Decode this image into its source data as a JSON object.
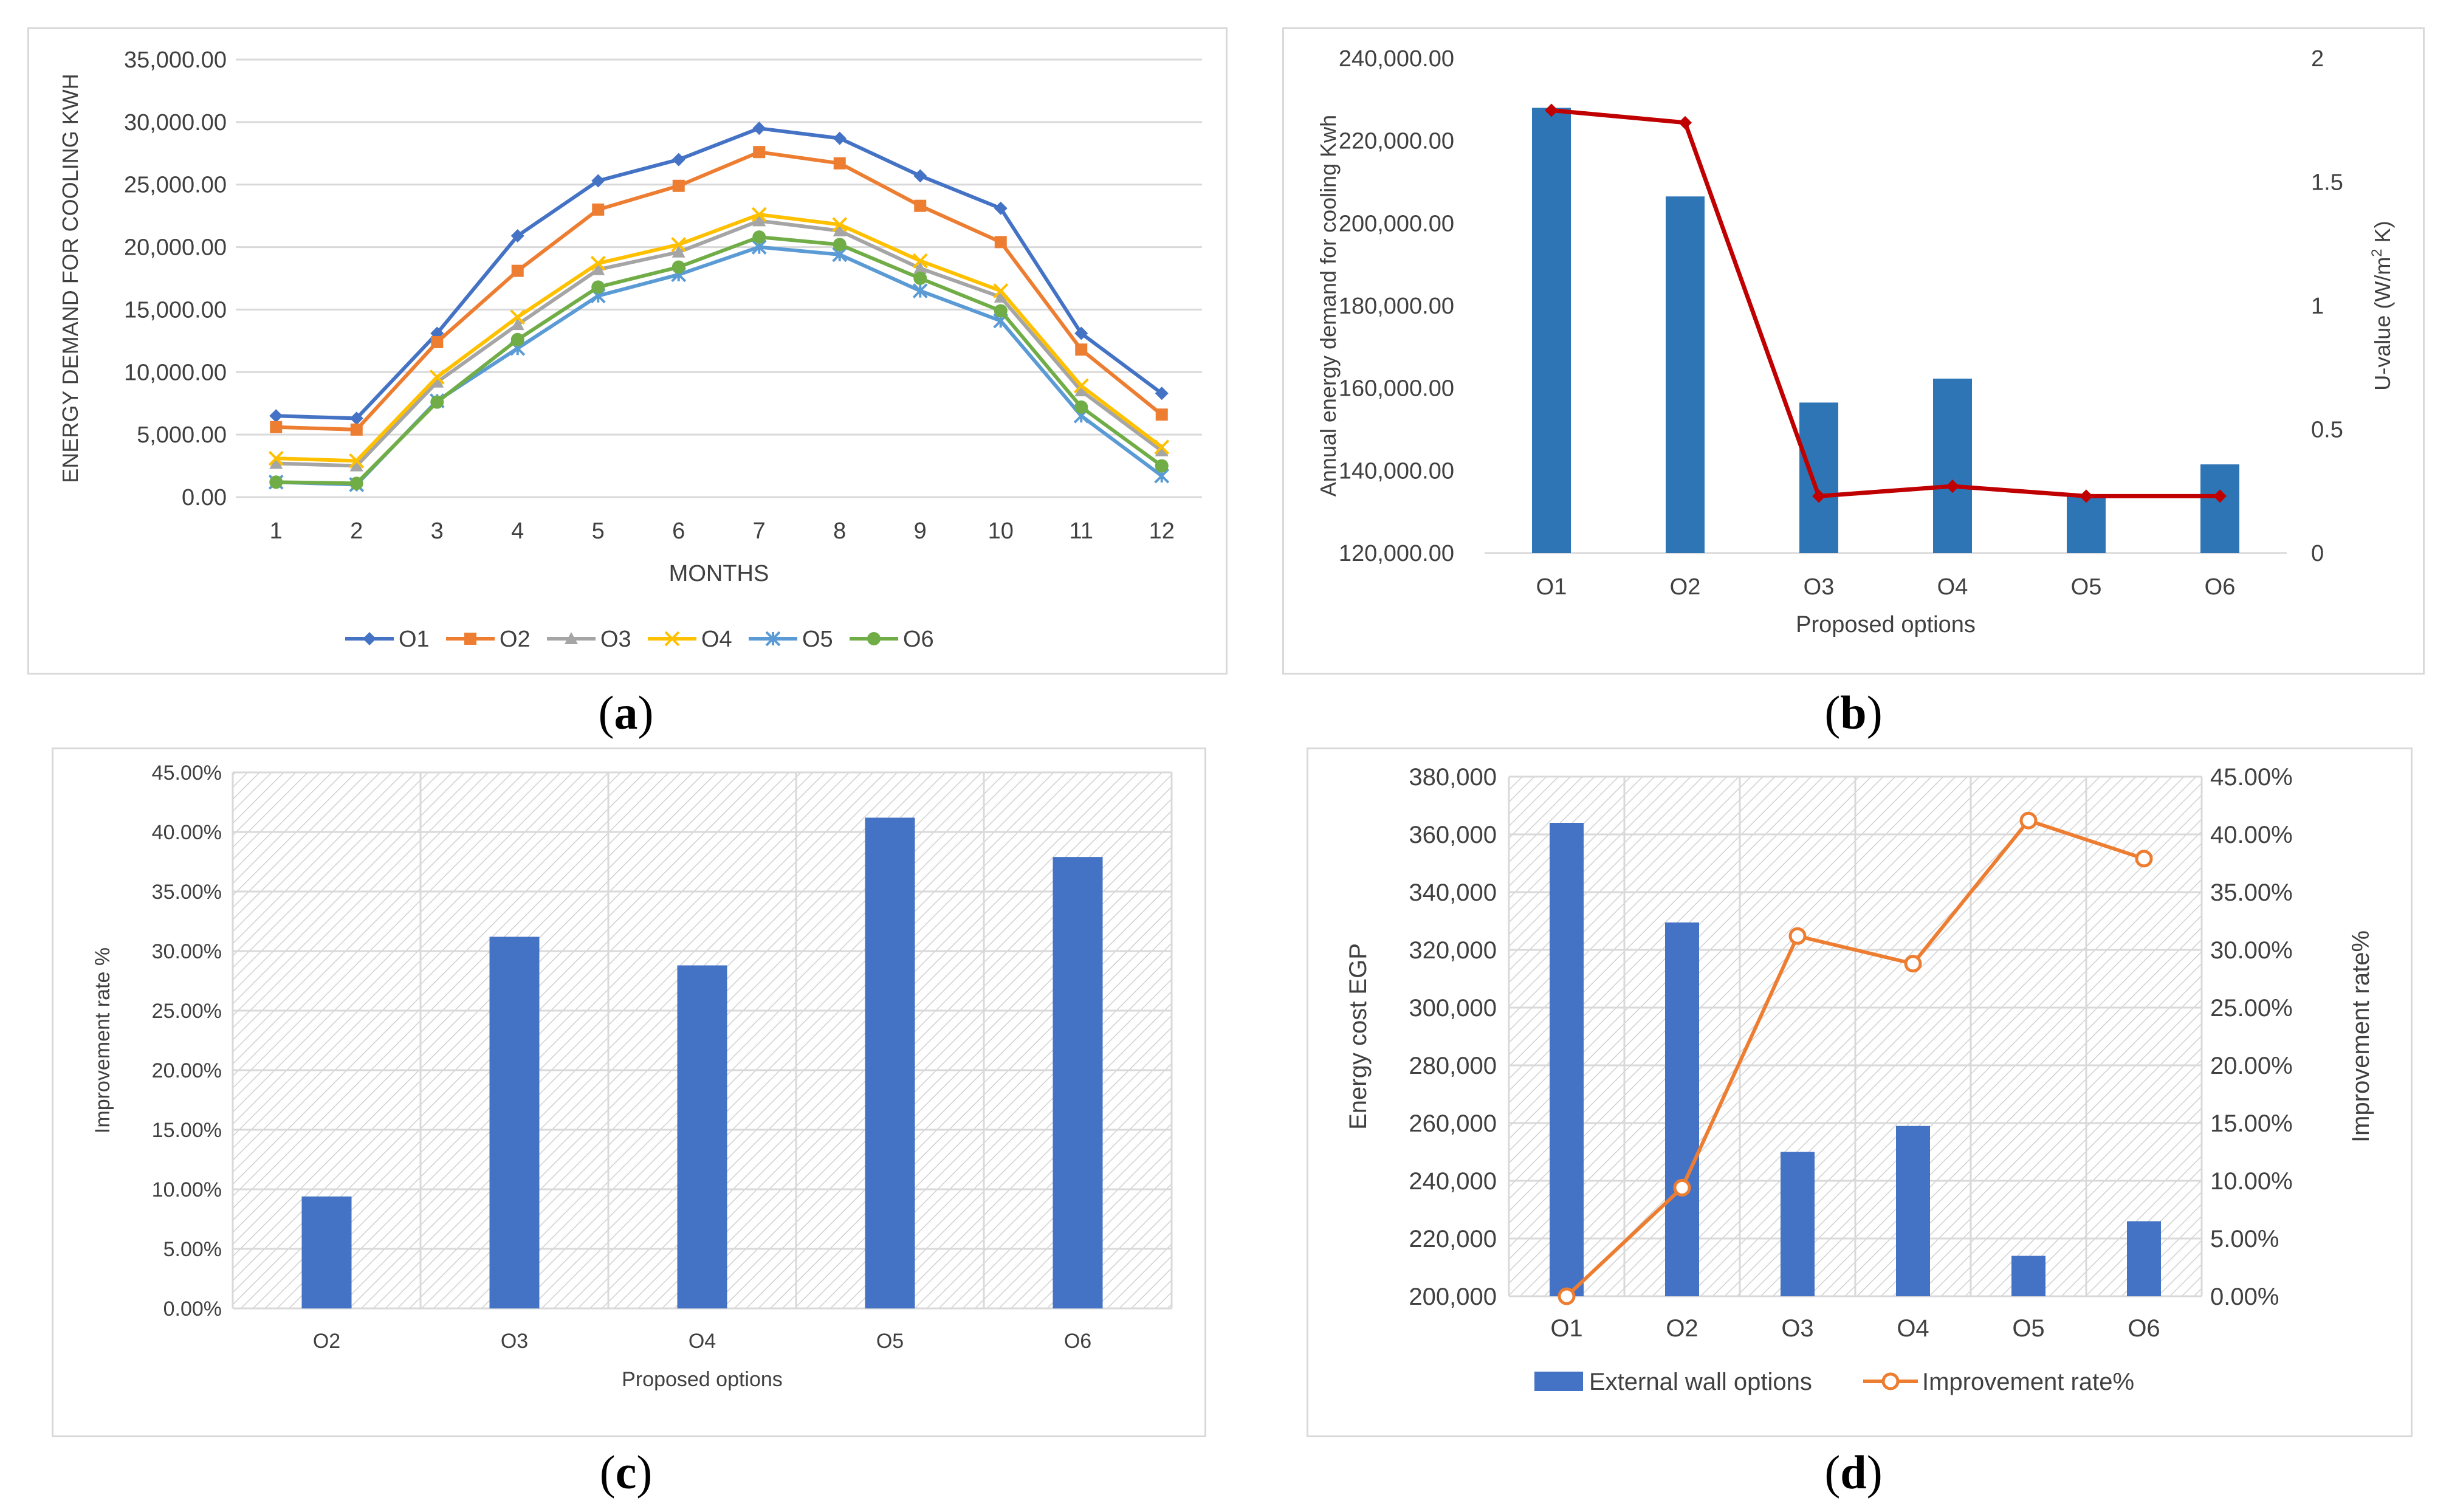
{
  "chart_data": [
    {
      "id": "a",
      "type": "line",
      "caption": "a",
      "ylabel": "ENERGY DEMAND FOR COOLING KWH",
      "xlabel": "MONTHS",
      "ylim": [
        0,
        35000
      ],
      "yticks": [
        "0.00",
        "5,000.00",
        "10,000.00",
        "15,000.00",
        "20,000.00",
        "25,000.00",
        "30,000.00",
        "35,000.00"
      ],
      "categories": [
        "1",
        "2",
        "3",
        "4",
        "5",
        "6",
        "7",
        "8",
        "9",
        "10",
        "11",
        "12"
      ],
      "legend": "bottom",
      "series": [
        {
          "name": "O1",
          "color": "#4472C4",
          "marker": "diamond",
          "values": [
            6500,
            6300,
            13100,
            20900,
            25300,
            27000,
            29500,
            28700,
            25700,
            23100,
            13100,
            8300
          ]
        },
        {
          "name": "O2",
          "color": "#ED7D31",
          "marker": "square",
          "values": [
            5600,
            5400,
            12400,
            18100,
            23000,
            24900,
            27600,
            26700,
            23300,
            20400,
            11800,
            6600
          ]
        },
        {
          "name": "O3",
          "color": "#A5A5A5",
          "marker": "triangle",
          "values": [
            2700,
            2500,
            9200,
            13800,
            18200,
            19600,
            22100,
            21300,
            18300,
            16000,
            8500,
            3700
          ]
        },
        {
          "name": "O4",
          "color": "#FFC000",
          "marker": "x",
          "values": [
            3100,
            2900,
            9600,
            14400,
            18700,
            20200,
            22600,
            21800,
            18900,
            16500,
            8900,
            4000
          ]
        },
        {
          "name": "O5",
          "color": "#5B9BD5",
          "marker": "star",
          "values": [
            1200,
            1000,
            7700,
            11900,
            16100,
            17800,
            20000,
            19400,
            16500,
            14100,
            6500,
            1700
          ]
        },
        {
          "name": "O6",
          "color": "#70AD47",
          "marker": "circle",
          "values": [
            1200,
            1100,
            7600,
            12600,
            16800,
            18400,
            20800,
            20200,
            17500,
            14900,
            7200,
            2500
          ]
        }
      ]
    },
    {
      "id": "b",
      "type": "bar",
      "caption": "b",
      "ylabel": "Annual energy demand for cooling Kwh",
      "y2label_main": "U-value (W/m",
      "y2label_sup": "2",
      "y2label_tail": " K)",
      "xlabel": "Proposed options",
      "ylim": [
        120000,
        240000
      ],
      "yticks": [
        "120,000.00",
        "140,000.00",
        "160,000.00",
        "180,000.00",
        "200,000.00",
        "220,000.00",
        "240,000.00"
      ],
      "y2lim": [
        0,
        2
      ],
      "y2ticks": [
        "0",
        "0.5",
        "1",
        "1.5",
        "2"
      ],
      "categories": [
        "O1",
        "O2",
        "O3",
        "O4",
        "O5",
        "O6"
      ],
      "bar_color": "#2E75B6",
      "line_color": "#C00000",
      "values": [
        228000,
        206500,
        156500,
        162300,
        134000,
        141500
      ],
      "line_values": [
        1.79,
        1.74,
        0.23,
        0.27,
        0.23,
        0.23
      ]
    },
    {
      "id": "c",
      "type": "bar",
      "caption": "c",
      "ylabel": "Improvement rate %",
      "xlabel": "Proposed options",
      "ylim": [
        0,
        45
      ],
      "yticks": [
        "0.00%",
        "5.00%",
        "10.00%",
        "15.00%",
        "20.00%",
        "25.00%",
        "30.00%",
        "35.00%",
        "40.00%",
        "45.00%"
      ],
      "categories": [
        "O2",
        "O3",
        "O4",
        "O5",
        "O6"
      ],
      "bar_color": "#4472C4",
      "values": [
        9.4,
        31.2,
        28.8,
        41.2,
        37.9
      ]
    },
    {
      "id": "d",
      "type": "bar",
      "caption": "d",
      "ylabel": "Energy cost EGP",
      "y2label": "Improvement rate%",
      "ylim": [
        200000,
        380000
      ],
      "yticks": [
        "200,000",
        "220,000",
        "240,000",
        "260,000",
        "280,000",
        "300,000",
        "320,000",
        "340,000",
        "360,000",
        "380,000"
      ],
      "y2lim": [
        0,
        45
      ],
      "y2ticks": [
        "0.00%",
        "5.00%",
        "10.00%",
        "15.00%",
        "20.00%",
        "25.00%",
        "30.00%",
        "35.00%",
        "40.00%",
        "45.00%"
      ],
      "categories": [
        "O1",
        "O2",
        "O3",
        "O4",
        "O5",
        "O6"
      ],
      "bar_color": "#4472C4",
      "line_color": "#ED7D31",
      "values": [
        364000,
        329500,
        250000,
        259000,
        214000,
        226000
      ],
      "line_values": [
        0.0,
        9.4,
        31.2,
        28.8,
        41.2,
        37.9
      ],
      "legend": [
        "External wall options",
        "Improvement rate%"
      ]
    }
  ]
}
